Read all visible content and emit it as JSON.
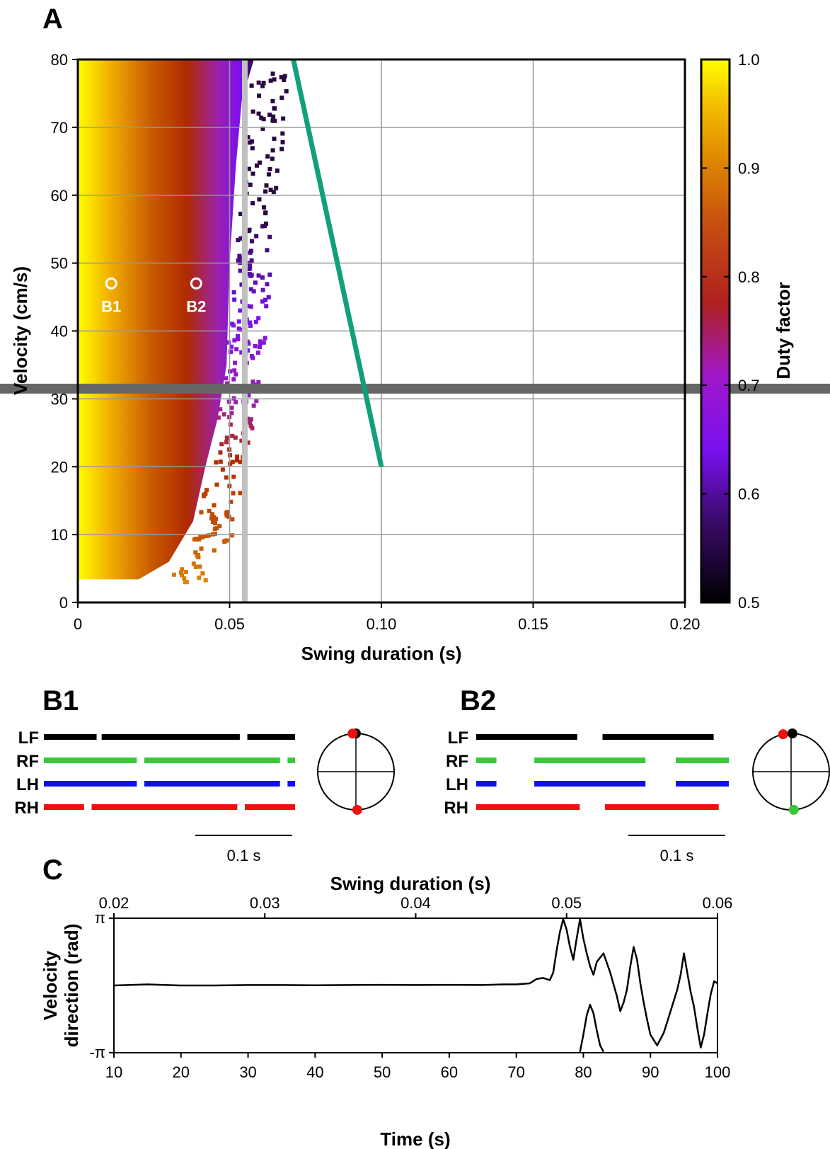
{
  "colors": {
    "swing_line": "#11a07a",
    "threshold_bar": "#c0c0c0",
    "colorbar_marker": "#666666",
    "LF": "#000000",
    "RF": "#39c83a",
    "LH": "#1010ee",
    "RH": "#ee1010"
  },
  "panel_a": {
    "letter": "A",
    "chart_data": {
      "type": "heatmap",
      "xlabel": "Swing duration (s)",
      "ylabel": "Velocity (cm/s)",
      "xlim": [
        0,
        0.2
      ],
      "ylim": [
        0,
        80
      ],
      "xticks": [
        "0",
        "0.05",
        "0.10",
        "0.15",
        "0.20"
      ],
      "xtick_values": [
        0,
        0.05,
        0.1,
        0.15,
        0.2
      ],
      "yticks": [
        "0",
        "10",
        "20",
        "30",
        "40",
        "50",
        "60",
        "70",
        "80"
      ],
      "ytick_values": [
        0,
        10,
        20,
        30,
        40,
        50,
        60,
        70,
        80
      ],
      "grid": true,
      "colorbar": {
        "label": "Duty factor",
        "range": [
          0.5,
          1.0
        ],
        "ticks": [
          "0.5",
          "0.6",
          "0.7",
          "0.8",
          "0.9",
          "1.0"
        ],
        "tick_values": [
          0.5,
          0.6,
          0.7,
          0.8,
          0.9,
          1.0
        ],
        "marked_value": 0.7
      },
      "reference_lines": {
        "vertical_swing": 0.055,
        "horizontal_velocity": 31.5,
        "diagonal": {
          "x": [
            0.071,
            0.1
          ],
          "y": [
            80,
            20
          ]
        }
      },
      "markers": [
        {
          "label": "B1",
          "x": 0.011,
          "y": 47
        },
        {
          "label": "B2",
          "x": 0.039,
          "y": 47
        }
      ]
    }
  },
  "panel_b1": {
    "letter": "B1",
    "limbs": [
      {
        "label": "LF",
        "segments": [
          [
            0,
            0.21
          ],
          [
            0.23,
            0.78
          ],
          [
            0.81,
            1.0
          ]
        ]
      },
      {
        "label": "RF",
        "segments": [
          [
            0,
            0.37
          ],
          [
            0.4,
            0.94
          ],
          [
            0.97,
            1.0
          ]
        ]
      },
      {
        "label": "LH",
        "segments": [
          [
            0,
            0.37
          ],
          [
            0.4,
            0.94
          ],
          [
            0.97,
            1.0
          ]
        ]
      },
      {
        "label": "RH",
        "segments": [
          [
            0,
            0.16
          ],
          [
            0.19,
            0.77
          ],
          [
            0.8,
            1.0
          ]
        ]
      }
    ],
    "scale_bar": "0.1 s",
    "phase_dots": [
      {
        "limb": "LF",
        "angle_deg": 90
      },
      {
        "limb": "RH",
        "angle_deg": 95
      },
      {
        "limb": "RH",
        "angle_deg": 272
      }
    ]
  },
  "panel_b2": {
    "letter": "B2",
    "limbs": [
      {
        "label": "LF",
        "segments": [
          [
            0,
            0.4
          ],
          [
            0.5,
            0.94
          ]
        ]
      },
      {
        "label": "RF",
        "segments": [
          [
            0,
            0.08
          ],
          [
            0.23,
            0.67
          ],
          [
            0.79,
            1.0
          ]
        ]
      },
      {
        "label": "LH",
        "segments": [
          [
            0,
            0.08
          ],
          [
            0.23,
            0.67
          ],
          [
            0.79,
            1.0
          ]
        ]
      },
      {
        "label": "RH",
        "segments": [
          [
            0,
            0.41
          ],
          [
            0.51,
            0.96
          ]
        ]
      }
    ],
    "scale_bar": "0.1 s",
    "phase_dots": [
      {
        "limb": "RH",
        "angle_deg": 102
      },
      {
        "limb": "LF",
        "angle_deg": 88
      },
      {
        "limb": "RF",
        "angle_deg": 274
      }
    ]
  },
  "panel_c": {
    "letter": "C",
    "chart_data": {
      "type": "line",
      "xlabel": "Time (s)",
      "top_xlabel": "Swing duration (s)",
      "ylabel_line1": "Velocity",
      "ylabel_line2": "direction (rad)",
      "xlim": [
        10,
        100
      ],
      "xticks": [
        "10",
        "20",
        "30",
        "40",
        "50",
        "60",
        "70",
        "80",
        "90",
        "100"
      ],
      "xtick_values": [
        10,
        20,
        30,
        40,
        50,
        60,
        70,
        80,
        90,
        100
      ],
      "top_xlim": [
        0.02,
        0.06
      ],
      "top_xticks": [
        "0.02",
        "0.03",
        "0.04",
        "0.05",
        "0.06"
      ],
      "top_xtick_values": [
        0.02,
        0.03,
        0.04,
        0.05,
        0.06
      ],
      "ylim": [
        -3.1416,
        3.1416
      ],
      "yticks": [
        "π",
        "-π"
      ],
      "ytick_values": [
        3.1416,
        -3.1416
      ],
      "series": [
        {
          "x": [
            10,
            15,
            20,
            25,
            30,
            35,
            40,
            45,
            50,
            55,
            60,
            65,
            68,
            70,
            72,
            73,
            74,
            75,
            75.5,
            76,
            76.5,
            77,
            77.5,
            78,
            78.5,
            79,
            79.5,
            80,
            80.5,
            81,
            81.5,
            82,
            83,
            84,
            85,
            85.5,
            86,
            86.5,
            87,
            87.5,
            88,
            88.5,
            89,
            89.5,
            90,
            91,
            92,
            93,
            94,
            94.5,
            95,
            95.5,
            96,
            96.5,
            97,
            97.5,
            98,
            98.5,
            99,
            99.5,
            100
          ],
          "y": [
            0,
            0.05,
            0,
            0,
            0.02,
            0.02,
            0.01,
            0.02,
            0.03,
            0.02,
            0.03,
            0.02,
            0.05,
            0.05,
            0.1,
            0.3,
            0.35,
            0.25,
            0.6,
            1.6,
            2.5,
            3.1,
            2.6,
            1.8,
            1.2,
            2.2,
            3.1,
            2.2,
            1.5,
            0.9,
            0.5,
            1.1,
            1.5,
            0.6,
            -0.5,
            -1.2,
            -0.8,
            -0.2,
            0.9,
            1.8,
            1.2,
            0.1,
            -0.8,
            -1.6,
            -2.3,
            -2.8,
            -2.2,
            -1.2,
            -0.2,
            0.5,
            1.5,
            0.6,
            -0.3,
            -1.0,
            -2.0,
            -2.9,
            -2.3,
            -1.3,
            -0.4,
            0.2,
            0.1
          ]
        },
        {
          "x": [
            79.5,
            80,
            80.5,
            81,
            81.5,
            82,
            82.5,
            83
          ],
          "y": [
            -3.1,
            -2.3,
            -1.4,
            -0.9,
            -1.3,
            -2.1,
            -2.8,
            -3.1
          ]
        }
      ]
    }
  }
}
